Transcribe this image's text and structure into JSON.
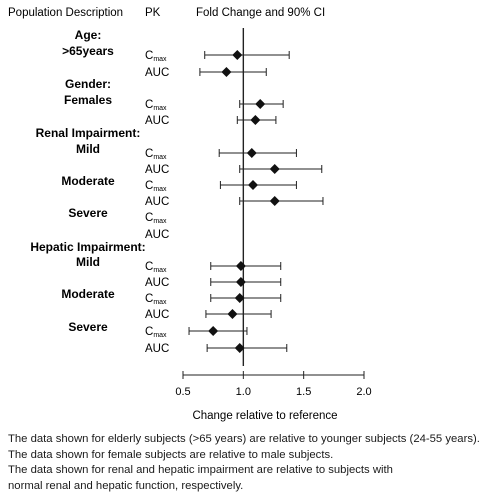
{
  "headers": {
    "population": "Population Description",
    "pk": "PK",
    "fold_change": "Fold Change and 90% CI"
  },
  "chart_data": {
    "type": "forest",
    "xlabel": "Change relative to reference",
    "xlim": [
      0.5,
      2.0
    ],
    "xticks": [
      0.5,
      1.0,
      1.5,
      2.0
    ],
    "tick_labels": [
      "0.5",
      "1.0",
      "1.5",
      "2.0"
    ],
    "reference_line": 1.0,
    "groups": [
      {
        "category": "Age:",
        "label": ">65years",
        "rows": [
          {
            "pk": "Cmax",
            "estimate": 0.95,
            "lower": 0.68,
            "upper": 1.38
          },
          {
            "pk": "AUC",
            "estimate": 0.86,
            "lower": 0.64,
            "upper": 1.19
          }
        ]
      },
      {
        "category": "Gender:",
        "label": "Females",
        "rows": [
          {
            "pk": "Cmax",
            "estimate": 1.14,
            "lower": 0.97,
            "upper": 1.33
          },
          {
            "pk": "AUC",
            "estimate": 1.1,
            "lower": 0.95,
            "upper": 1.27
          }
        ]
      },
      {
        "category": "Renal Impairment:",
        "label": "Mild",
        "rows": [
          {
            "pk": "Cmax",
            "estimate": 1.07,
            "lower": 0.8,
            "upper": 1.44
          },
          {
            "pk": "AUC",
            "estimate": 1.26,
            "lower": 0.97,
            "upper": 1.65
          }
        ]
      },
      {
        "category": "",
        "label": "Moderate",
        "rows": [
          {
            "pk": "Cmax",
            "estimate": 1.08,
            "lower": 0.81,
            "upper": 1.44
          },
          {
            "pk": "AUC",
            "estimate": 1.26,
            "lower": 0.97,
            "upper": 1.66
          }
        ]
      },
      {
        "category": "",
        "label": "Severe",
        "rows": [
          {
            "pk": "Cmax",
            "estimate": null,
            "lower": null,
            "upper": null
          },
          {
            "pk": "AUC",
            "estimate": null,
            "lower": null,
            "upper": null
          }
        ]
      },
      {
        "category": "Hepatic Impairment:",
        "label": "Mild",
        "rows": [
          {
            "pk": "Cmax",
            "estimate": 0.98,
            "lower": 0.73,
            "upper": 1.31
          },
          {
            "pk": "AUC",
            "estimate": 0.98,
            "lower": 0.73,
            "upper": 1.31
          }
        ]
      },
      {
        "category": "",
        "label": "Moderate",
        "rows": [
          {
            "pk": "Cmax",
            "estimate": 0.97,
            "lower": 0.73,
            "upper": 1.31
          },
          {
            "pk": "AUC",
            "estimate": 0.91,
            "lower": 0.69,
            "upper": 1.23
          }
        ]
      },
      {
        "category": "",
        "label": "Severe",
        "rows": [
          {
            "pk": "Cmax",
            "estimate": 0.75,
            "lower": 0.55,
            "upper": 1.03
          },
          {
            "pk": "AUC",
            "estimate": 0.97,
            "lower": 0.7,
            "upper": 1.36
          }
        ]
      }
    ]
  },
  "footnotes": [
    "The data shown for elderly subjects (>65 years) are relative to younger subjects (24-55 years).",
    "The data shown for female subjects are relative to male subjects.",
    "The data shown for renal and hepatic impairment are relative to subjects with",
    "normal renal and hepatic function, respectively."
  ]
}
